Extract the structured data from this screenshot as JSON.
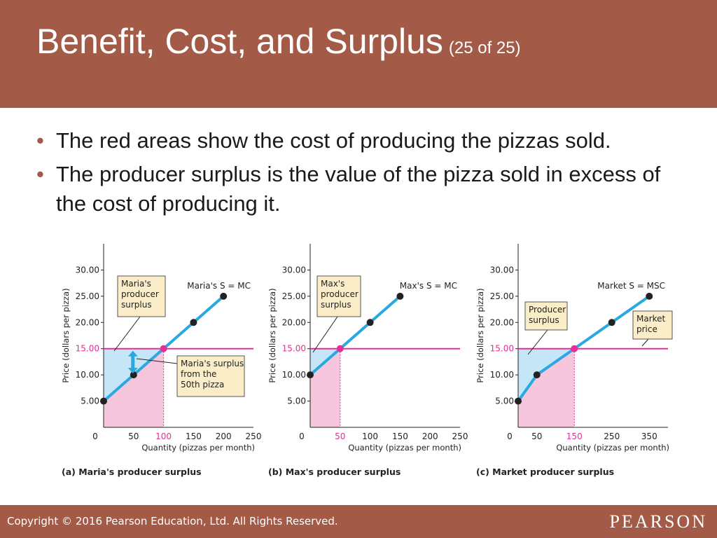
{
  "slide": {
    "title": "Benefit, Cost, and Surplus",
    "subtitle": "(25 of 25)",
    "bullets": [
      "The red areas show the cost of producing the pizzas sold.",
      "The producer surplus is the value of the pizza sold in excess of the cost of producing it."
    ]
  },
  "footer": {
    "copyright": "Copyright © 2016 Pearson Education, Ltd. All Rights Reserved.",
    "logo": "PEARSON"
  },
  "colors": {
    "header_bg": "#a35a47",
    "supply_line": "#29a9e0",
    "price_line": "#e62e96",
    "surplus_fill": "#c4e6f6",
    "cost_fill": "#f6c6dd",
    "callout_bg": "#faedc8",
    "point": "#222222"
  },
  "chart_data": [
    {
      "type": "line",
      "caption": "(a) Maria's producer surplus",
      "xlabel": "Quantity (pizzas per month)",
      "ylabel": "Price (dollars per pizza)",
      "xlim": [
        0,
        250
      ],
      "ylim": [
        0,
        35
      ],
      "x_ticks": [
        "0",
        "50",
        "100",
        "150",
        "200",
        "250"
      ],
      "y_ticks": [
        "5.00",
        "10.00",
        "15.00",
        "20.00",
        "25.00",
        "30.00"
      ],
      "highlight_x_tick": "100",
      "series": [
        {
          "name": "Maria's S = MC",
          "x": [
            0,
            50,
            100,
            150,
            200
          ],
          "y": [
            5,
            10,
            15,
            20,
            25
          ]
        }
      ],
      "market_price": 15,
      "quantity_sold": 100,
      "annotations": [
        "Maria's producer surplus",
        "Maria's surplus from the 50th pizza"
      ]
    },
    {
      "type": "line",
      "caption": "(b) Max's producer surplus",
      "xlabel": "Quantity (pizzas per month)",
      "ylabel": "Price (dollars per pizza)",
      "xlim": [
        0,
        250
      ],
      "ylim": [
        0,
        35
      ],
      "x_ticks": [
        "0",
        "50",
        "100",
        "150",
        "200",
        "250"
      ],
      "y_ticks": [
        "5.00",
        "10.00",
        "15.00",
        "20.00",
        "25.00",
        "30.00"
      ],
      "highlight_x_tick": "50",
      "series": [
        {
          "name": "Max's S = MC",
          "x": [
            0,
            50,
            100,
            150
          ],
          "y": [
            10,
            15,
            20,
            25
          ]
        }
      ],
      "market_price": 15,
      "quantity_sold": 50,
      "annotations": [
        "Max's producer surplus"
      ]
    },
    {
      "type": "line",
      "caption": "(c) Market producer surplus",
      "xlabel": "Quantity (pizzas per month)",
      "ylabel": "Price (dollars per pizza)",
      "xlim": [
        0,
        400
      ],
      "ylim": [
        0,
        35
      ],
      "x_ticks": [
        "0",
        "50",
        "150",
        "250",
        "350"
      ],
      "y_ticks": [
        "5.00",
        "10.00",
        "15.00",
        "20.00",
        "25.00",
        "30.00"
      ],
      "highlight_x_tick": "150",
      "series": [
        {
          "name": "Market S = MSC",
          "x": [
            0,
            50,
            150,
            250,
            350
          ],
          "y": [
            5,
            10,
            15,
            20,
            25
          ]
        }
      ],
      "market_price": 15,
      "quantity_sold": 150,
      "annotations": [
        "Producer surplus",
        "Market price"
      ]
    }
  ]
}
